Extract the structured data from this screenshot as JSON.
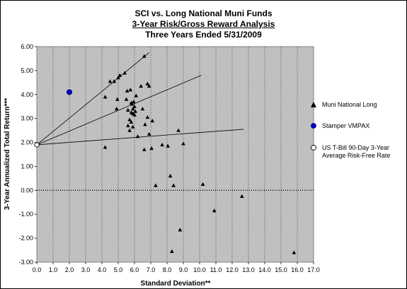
{
  "chart_data": {
    "type": "scatter",
    "title": "SCI vs. Long National Muni Funds",
    "subtitle": "3-Year Risk/Gross Reward Analysis",
    "subtitle2": "Three Years Ended 5/31/2009",
    "xlabel": "Standard Deviation**",
    "ylabel": "3-Year Annualized Total Return***",
    "xlim": [
      0,
      17
    ],
    "ylim": [
      -3,
      6
    ],
    "x_ticks": [
      "0.0",
      "1.0",
      "2.0",
      "3.0",
      "4.0",
      "5.0",
      "6.0",
      "7.0",
      "8.0",
      "9.0",
      "10.0",
      "11.0",
      "12.0",
      "13.0",
      "14.0",
      "15.0",
      "16.0",
      "17.0"
    ],
    "y_ticks": [
      "6.00",
      "5.00",
      "4.00",
      "3.00",
      "2.00",
      "1.00",
      "0.00",
      "-1.00",
      "-2.00",
      "-3.00"
    ],
    "background": "#c0c0c0",
    "grid": "vertical dotted",
    "legend_position": "right",
    "series": [
      {
        "name": "Muni National Long",
        "marker": "triangle",
        "color": "#000000",
        "points": [
          [
            4.2,
            3.9
          ],
          [
            4.5,
            4.55
          ],
          [
            4.75,
            4.55
          ],
          [
            4.9,
            3.4
          ],
          [
            4.95,
            3.8
          ],
          [
            5.0,
            4.7
          ],
          [
            5.1,
            4.8
          ],
          [
            5.4,
            4.9
          ],
          [
            5.5,
            3.8
          ],
          [
            5.55,
            4.15
          ],
          [
            5.6,
            3.35
          ],
          [
            5.6,
            2.7
          ],
          [
            5.7,
            2.95
          ],
          [
            5.7,
            2.5
          ],
          [
            5.75,
            4.2
          ],
          [
            5.8,
            3.65
          ],
          [
            5.8,
            3.25
          ],
          [
            5.8,
            2.85
          ],
          [
            5.85,
            3.6
          ],
          [
            5.9,
            3.4
          ],
          [
            5.9,
            3.2
          ],
          [
            5.9,
            2.65
          ],
          [
            5.95,
            3.7
          ],
          [
            6.0,
            3.5
          ],
          [
            6.0,
            3.15
          ],
          [
            6.05,
            3.3
          ],
          [
            6.1,
            3.95
          ],
          [
            6.2,
            2.25
          ],
          [
            6.4,
            4.35
          ],
          [
            6.5,
            3.4
          ],
          [
            6.6,
            5.6
          ],
          [
            6.65,
            2.75
          ],
          [
            6.8,
            4.45
          ],
          [
            6.9,
            4.35
          ],
          [
            6.8,
            3.05
          ],
          [
            6.9,
            2.35
          ],
          [
            6.6,
            1.7
          ],
          [
            7.05,
            1.75
          ],
          [
            7.1,
            2.9
          ],
          [
            7.3,
            0.2
          ],
          [
            7.7,
            1.9
          ],
          [
            8.05,
            1.85
          ],
          [
            8.2,
            0.6
          ],
          [
            8.4,
            0.2
          ],
          [
            8.7,
            2.5
          ],
          [
            9.0,
            1.95
          ],
          [
            8.3,
            -2.55
          ],
          [
            8.8,
            -1.65
          ],
          [
            10.2,
            0.25
          ],
          [
            10.9,
            -0.85
          ],
          [
            12.6,
            -0.25
          ],
          [
            15.8,
            -2.6
          ],
          [
            4.2,
            1.8
          ]
        ]
      },
      {
        "name": "Stamper VMPAX",
        "marker": "circle",
        "color": "#0000cc",
        "points": [
          [
            2.0,
            4.1
          ]
        ]
      },
      {
        "name": "US T-Bill 90-Day 3-Year Average Risk-Free Rate",
        "marker": "open-circle",
        "color": "#000000",
        "points": [
          [
            0.0,
            1.9
          ]
        ]
      }
    ],
    "reference_lines": [
      {
        "from": [
          0.0,
          1.9
        ],
        "to": [
          6.9,
          5.75
        ]
      },
      {
        "from": [
          0.0,
          1.9
        ],
        "to": [
          10.1,
          4.8
        ]
      },
      {
        "from": [
          0.0,
          1.9
        ],
        "to": [
          12.7,
          2.55
        ]
      },
      {
        "from": [
          0.0,
          0.0
        ],
        "to": [
          17.0,
          0.0
        ],
        "style": "dotted"
      }
    ],
    "legend": [
      "Muni National Long",
      "Stamper VMPAX",
      "US T-Bill 90-Day 3-Year Average Risk-Free Rate"
    ]
  },
  "legend_labels": {
    "muni": "Muni National Long",
    "stamper": "Stamper VMPAX",
    "tbill_line1": "US T-Bill 90-Day 3-Year",
    "tbill_line2": "Average Risk-Free Rate"
  }
}
